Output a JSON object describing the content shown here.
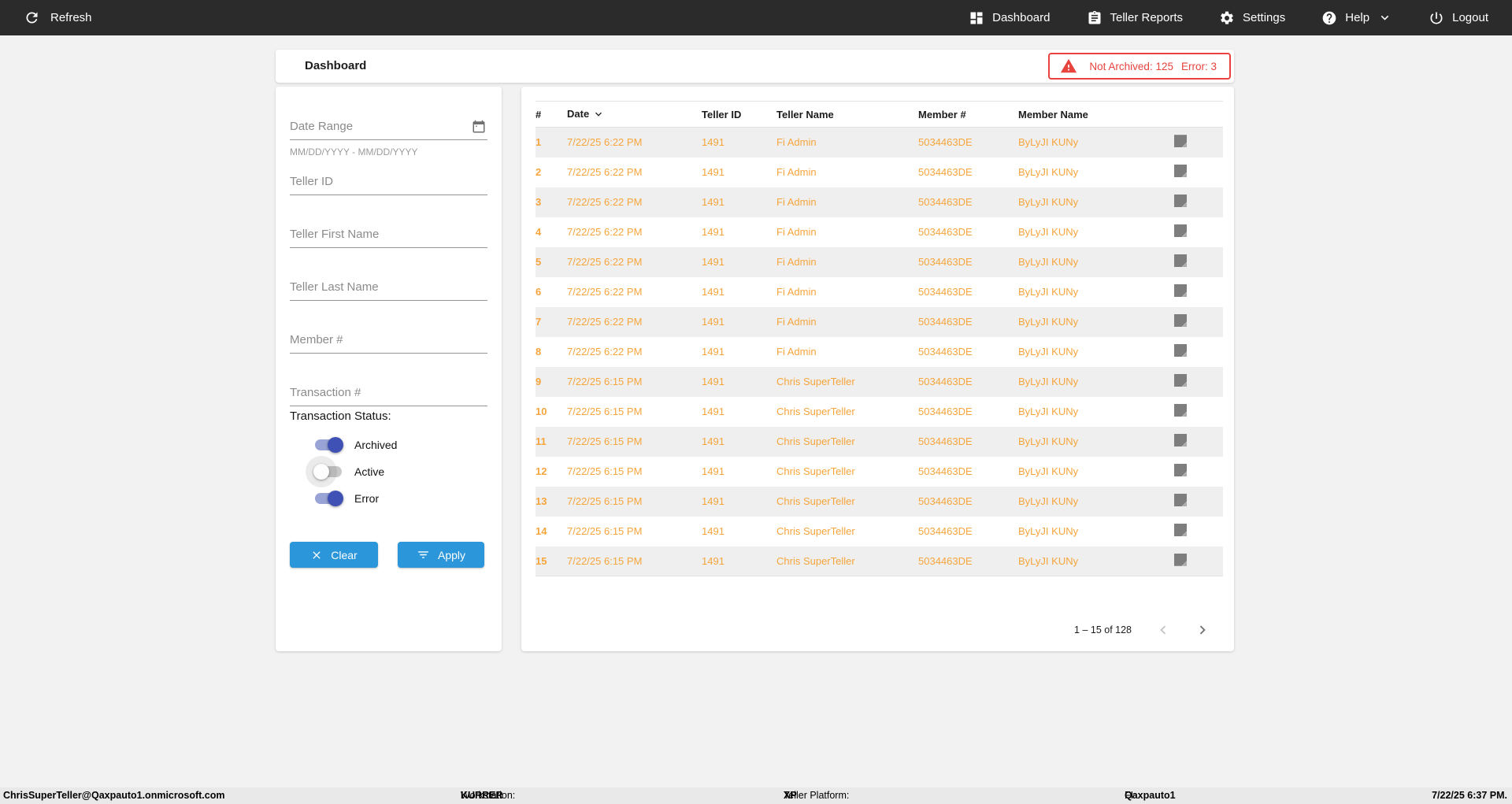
{
  "colors": {
    "navbar_bg": "#2b2b2b",
    "alert_red": "#e8433c",
    "row_orange": "#f6a53d",
    "button_blue": "#2b96d9",
    "toggle_indigo": "#3f51b5",
    "page_bg": "#f2f2f2",
    "stripe_gray": "#efefef"
  },
  "navbar": {
    "refresh_label": "Refresh",
    "items": [
      {
        "id": "dashboard",
        "label": "Dashboard",
        "icon": "dashboard-icon"
      },
      {
        "id": "teller-reports",
        "label": "Teller Reports",
        "icon": "reports-icon"
      },
      {
        "id": "settings",
        "label": "Settings",
        "icon": "settings-icon"
      },
      {
        "id": "help",
        "label": "Help",
        "icon": "help-icon",
        "chevron": true
      },
      {
        "id": "logout",
        "label": "Logout",
        "icon": "logout-icon"
      }
    ]
  },
  "header": {
    "title": "Dashboard",
    "alert": {
      "not_archived": "Not Archived: 125",
      "error": "Error: 3"
    }
  },
  "filters": {
    "date_range_label": "Date Range",
    "date_range_hint": "MM/DD/YYYY - MM/DD/YYYY",
    "teller_id_label": "Teller ID",
    "teller_first_name_label": "Teller First Name",
    "teller_last_name_label": "Teller Last Name",
    "member_number_label": "Member #",
    "transaction_number_label": "Transaction #",
    "status_label": "Transaction Status:",
    "toggles": [
      {
        "label": "Archived",
        "on": true,
        "halo": false
      },
      {
        "label": "Active",
        "on": false,
        "halo": true
      },
      {
        "label": "Error",
        "on": true,
        "halo": false
      }
    ],
    "clear_label": "Clear",
    "apply_label": "Apply"
  },
  "table": {
    "columns": [
      "#",
      "Date",
      "Teller ID",
      "Teller Name",
      "Member #",
      "Member Name"
    ],
    "sorted_column": "Date",
    "rows": [
      {
        "num": "1",
        "date": "7/22/25 6:22 PM",
        "teller_id": "1491",
        "teller_name": "Fi Admin",
        "member_number": "5034463DE",
        "member_name": "ByLyJI KUNy"
      },
      {
        "num": "2",
        "date": "7/22/25 6:22 PM",
        "teller_id": "1491",
        "teller_name": "Fi Admin",
        "member_number": "5034463DE",
        "member_name": "ByLyJI KUNy"
      },
      {
        "num": "3",
        "date": "7/22/25 6:22 PM",
        "teller_id": "1491",
        "teller_name": "Fi Admin",
        "member_number": "5034463DE",
        "member_name": "ByLyJI KUNy"
      },
      {
        "num": "4",
        "date": "7/22/25 6:22 PM",
        "teller_id": "1491",
        "teller_name": "Fi Admin",
        "member_number": "5034463DE",
        "member_name": "ByLyJI KUNy"
      },
      {
        "num": "5",
        "date": "7/22/25 6:22 PM",
        "teller_id": "1491",
        "teller_name": "Fi Admin",
        "member_number": "5034463DE",
        "member_name": "ByLyJI KUNy"
      },
      {
        "num": "6",
        "date": "7/22/25 6:22 PM",
        "teller_id": "1491",
        "teller_name": "Fi Admin",
        "member_number": "5034463DE",
        "member_name": "ByLyJI KUNy"
      },
      {
        "num": "7",
        "date": "7/22/25 6:22 PM",
        "teller_id": "1491",
        "teller_name": "Fi Admin",
        "member_number": "5034463DE",
        "member_name": "ByLyJI KUNy"
      },
      {
        "num": "8",
        "date": "7/22/25 6:22 PM",
        "teller_id": "1491",
        "teller_name": "Fi Admin",
        "member_number": "5034463DE",
        "member_name": "ByLyJI KUNy"
      },
      {
        "num": "9",
        "date": "7/22/25 6:15 PM",
        "teller_id": "1491",
        "teller_name": "Chris SuperTeller",
        "member_number": "5034463DE",
        "member_name": "ByLyJI KUNy"
      },
      {
        "num": "10",
        "date": "7/22/25 6:15 PM",
        "teller_id": "1491",
        "teller_name": "Chris SuperTeller",
        "member_number": "5034463DE",
        "member_name": "ByLyJI KUNy"
      },
      {
        "num": "11",
        "date": "7/22/25 6:15 PM",
        "teller_id": "1491",
        "teller_name": "Chris SuperTeller",
        "member_number": "5034463DE",
        "member_name": "ByLyJI KUNy"
      },
      {
        "num": "12",
        "date": "7/22/25 6:15 PM",
        "teller_id": "1491",
        "teller_name": "Chris SuperTeller",
        "member_number": "5034463DE",
        "member_name": "ByLyJI KUNy"
      },
      {
        "num": "13",
        "date": "7/22/25 6:15 PM",
        "teller_id": "1491",
        "teller_name": "Chris SuperTeller",
        "member_number": "5034463DE",
        "member_name": "ByLyJI KUNy"
      },
      {
        "num": "14",
        "date": "7/22/25 6:15 PM",
        "teller_id": "1491",
        "teller_name": "Chris SuperTeller",
        "member_number": "5034463DE",
        "member_name": "ByLyJI KUNy"
      },
      {
        "num": "15",
        "date": "7/22/25 6:15 PM",
        "teller_id": "1491",
        "teller_name": "Chris SuperTeller",
        "member_number": "5034463DE",
        "member_name": "ByLyJI KUNy"
      }
    ],
    "pagination": {
      "range_label": "1 – 15 of 128"
    }
  },
  "footer": {
    "user": "ChrisSuperTeller@Qaxpauto1.onmicrosoft.com",
    "workstation_label": "Workstation:",
    "workstation_value": "KURRER",
    "platform_label": "Teller Platform:",
    "platform_value": "XP",
    "fi_label": "FI:",
    "fi_value": "Qaxpauto1",
    "timestamp": "7/22/25 6:37 PM."
  }
}
